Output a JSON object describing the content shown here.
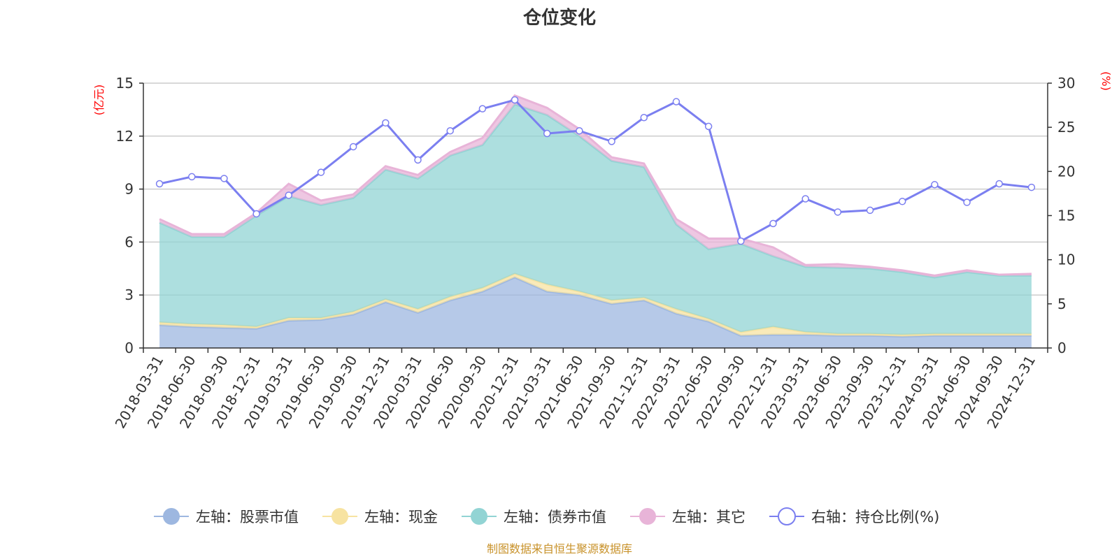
{
  "chart_data": {
    "type": "area",
    "title": "仓位变化",
    "left_axis_name": "(亿元)",
    "right_axis_name": "(%)",
    "left_ylim": [
      0,
      15
    ],
    "left_ticks": [
      "0",
      "3",
      "6",
      "9",
      "12",
      "15"
    ],
    "right_ylim": [
      0,
      30
    ],
    "right_ticks": [
      "0",
      "5",
      "10",
      "15",
      "20",
      "25",
      "30"
    ],
    "categories": [
      "2018-03-31",
      "2018-06-30",
      "2018-09-30",
      "2018-12-31",
      "2019-03-31",
      "2019-06-30",
      "2019-09-30",
      "2019-12-31",
      "2020-03-31",
      "2020-06-30",
      "2020-09-30",
      "2020-12-31",
      "2021-03-31",
      "2021-06-30",
      "2021-09-30",
      "2021-12-31",
      "2022-03-31",
      "2022-06-30",
      "2022-09-30",
      "2022-12-31",
      "2023-03-31",
      "2023-06-30",
      "2023-09-30",
      "2023-12-31",
      "2024-03-31",
      "2024-06-30",
      "2024-09-30",
      "2024-12-31"
    ],
    "series": [
      {
        "name": "左轴：股票市值",
        "axis": "left",
        "stack": true,
        "color": "#9db7e0",
        "values": [
          1.3,
          1.2,
          1.15,
          1.1,
          1.55,
          1.6,
          1.9,
          2.6,
          2.0,
          2.7,
          3.2,
          4.0,
          3.2,
          3.0,
          2.5,
          2.7,
          1.95,
          1.5,
          0.7,
          0.75,
          0.75,
          0.7,
          0.7,
          0.65,
          0.7,
          0.7,
          0.7,
          0.7
        ]
      },
      {
        "name": "左轴：现金",
        "axis": "left",
        "stack": true,
        "color": "#f7e3a1",
        "values": [
          0.15,
          0.15,
          0.15,
          0.1,
          0.15,
          0.1,
          0.15,
          0.15,
          0.2,
          0.2,
          0.2,
          0.2,
          0.4,
          0.2,
          0.2,
          0.15,
          0.25,
          0.15,
          0.2,
          0.45,
          0.15,
          0.1,
          0.1,
          0.1,
          0.1,
          0.1,
          0.1,
          0.1
        ]
      },
      {
        "name": "左轴：债券市值",
        "axis": "left",
        "stack": true,
        "color": "#92d4d4",
        "values": [
          5.65,
          4.95,
          5.0,
          6.3,
          6.9,
          6.4,
          6.45,
          7.35,
          7.4,
          8.0,
          8.1,
          9.6,
          9.6,
          8.8,
          7.9,
          7.4,
          4.8,
          3.95,
          5.0,
          4.0,
          3.7,
          3.75,
          3.7,
          3.55,
          3.2,
          3.5,
          3.3,
          3.3
        ]
      },
      {
        "name": "左轴：其它",
        "axis": "left",
        "stack": true,
        "color": "#e8b4d8",
        "values": [
          0.2,
          0.15,
          0.15,
          0.15,
          0.7,
          0.25,
          0.2,
          0.2,
          0.2,
          0.2,
          0.4,
          0.5,
          0.4,
          0.4,
          0.2,
          0.2,
          0.3,
          0.6,
          0.3,
          0.5,
          0.1,
          0.2,
          0.1,
          0.1,
          0.1,
          0.1,
          0.05,
          0.1
        ]
      },
      {
        "name": "右轴：持仓比例(%)",
        "axis": "right",
        "type": "line",
        "color": "#7b7ff0",
        "values": [
          18.6,
          19.4,
          19.2,
          15.2,
          17.3,
          19.9,
          22.8,
          25.5,
          21.3,
          24.6,
          27.1,
          28.1,
          24.3,
          24.6,
          23.4,
          26.1,
          27.9,
          25.1,
          12.1,
          14.1,
          16.9,
          15.4,
          15.6,
          16.6,
          18.5,
          16.5,
          18.6,
          18.2
        ]
      }
    ],
    "legend_position": "bottom-center",
    "grid": true
  },
  "footer": {
    "source": "制图数据来自恒生聚源数据库"
  }
}
